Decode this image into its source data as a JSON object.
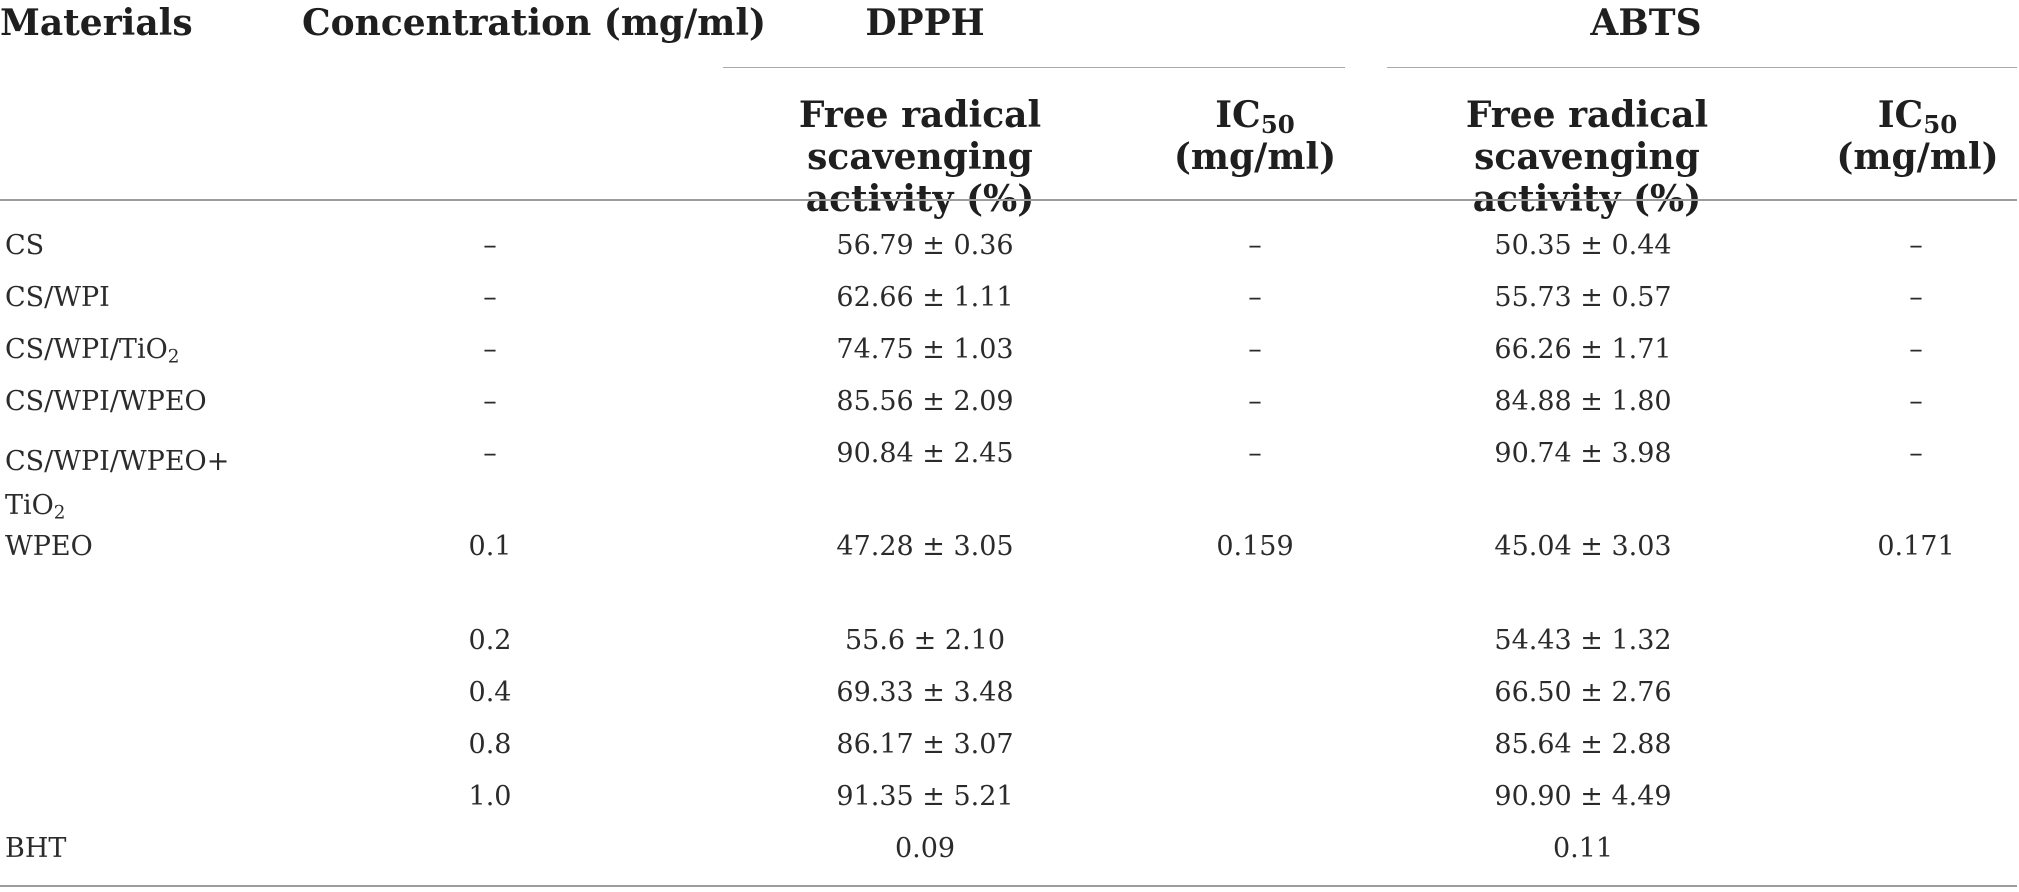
{
  "header": {
    "materials": "Materials",
    "concentration": "Concentration (mg/ml)",
    "group_dpph": "DPPH",
    "group_abts": "ABTS",
    "activity_line1": "Free radical scavenging",
    "activity_line2": "activity (%)",
    "ic_prefix": "IC",
    "ic_sub": "50",
    "ic_unit": "(mg/ml)"
  },
  "rows": [
    {
      "material": "CS",
      "conc": "–",
      "dpph_act": "56.79 ± 0.36",
      "dpph_ic": "–",
      "abts_act": "50.35 ± 0.44",
      "abts_ic": "–"
    },
    {
      "material": "CS/WPI",
      "conc": "–",
      "dpph_act": "62.66 ± 1.11",
      "dpph_ic": "–",
      "abts_act": "55.73 ± 0.57",
      "abts_ic": "–"
    },
    {
      "material_main": "CS/WPI/TiO",
      "material_sub": "2",
      "conc": "–",
      "dpph_act": "74.75 ± 1.03",
      "dpph_ic": "–",
      "abts_act": "66.26 ± 1.71",
      "abts_ic": "–"
    },
    {
      "material": "CS/WPI/WPEO",
      "conc": "–",
      "dpph_act": "85.56 ± 2.09",
      "dpph_ic": "–",
      "abts_act": "84.88 ± 1.80",
      "abts_ic": "–"
    },
    {
      "material_line1": "CS/WPI/WPEO+",
      "material_line2_main": "TiO",
      "material_line2_sub": "2",
      "conc": "–",
      "dpph_act": "90.84 ± 2.45",
      "dpph_ic": "–",
      "abts_act": "90.74 ± 3.98",
      "abts_ic": "–"
    },
    {
      "material": "WPEO",
      "conc": "0.1",
      "dpph_act": "47.28 ± 3.05",
      "dpph_ic": "0.159",
      "abts_act": "45.04 ± 3.03",
      "abts_ic": "0.171"
    },
    {
      "conc": "0.2",
      "dpph_act": "55.6 ± 2.10",
      "abts_act": "54.43 ± 1.32"
    },
    {
      "conc": "0.4",
      "dpph_act": "69.33 ± 3.48",
      "abts_act": "66.50 ± 2.76"
    },
    {
      "conc": "0.8",
      "dpph_act": "86.17 ± 3.07",
      "abts_act": "85.64 ± 2.88"
    },
    {
      "conc": "1.0",
      "dpph_act": "91.35 ± 5.21",
      "abts_act": "90.90 ± 4.49"
    },
    {
      "material": "BHT",
      "dpph_act": "0.09",
      "abts_act": "0.11"
    }
  ]
}
